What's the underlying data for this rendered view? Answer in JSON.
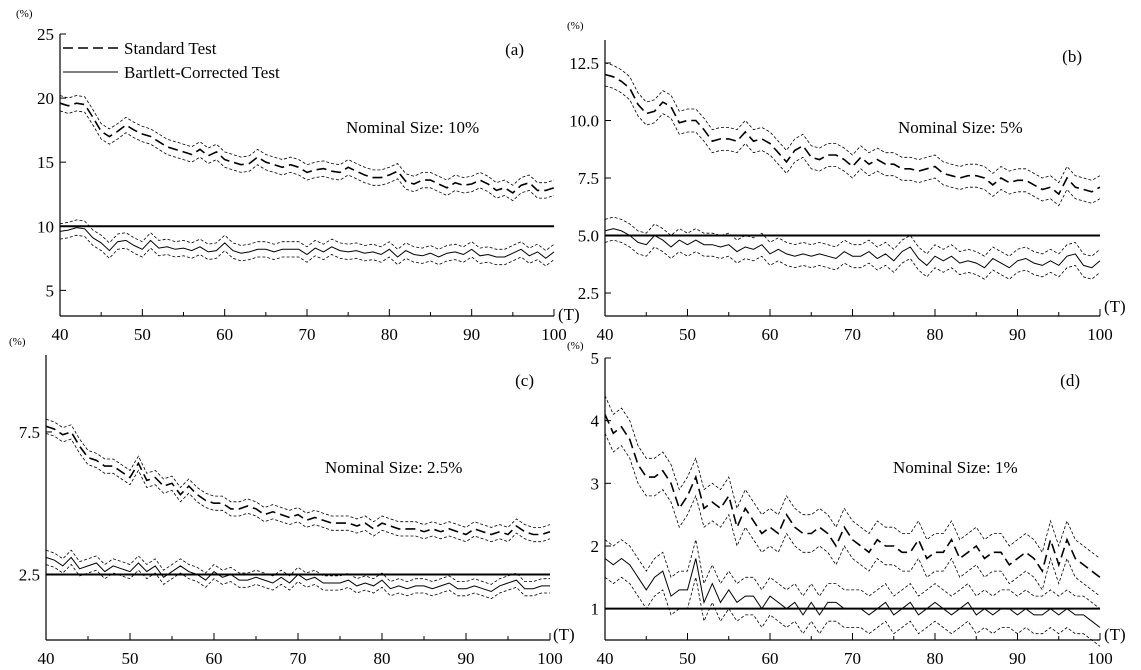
{
  "figure": {
    "legend": {
      "standard": "Standard Test",
      "bartlett": "Bartlett-Corrected Test"
    },
    "y_unit": "(%)",
    "x_unit": "(T)"
  },
  "chart_data": [
    {
      "type": "line",
      "panel_label": "(a)",
      "annotation": "Nominal Size: 10%",
      "xlabel": "(T)",
      "ylabel": "(%)",
      "xlim": [
        40,
        100
      ],
      "ylim": [
        3,
        25
      ],
      "xticks": [
        "40",
        "50",
        "60",
        "70",
        "80",
        "90",
        "100"
      ],
      "yticks": [
        "5",
        "10",
        "15",
        "20",
        "25"
      ],
      "nominal_line": 10,
      "band": 0.6,
      "x_start": 40,
      "x_step": 1,
      "grid": false,
      "legend_position": "top-left",
      "series": [
        {
          "name": "Standard Test",
          "style": "dashed",
          "values": [
            19.6,
            19.4,
            19.6,
            19.5,
            18.5,
            17.4,
            17.0,
            17.4,
            17.9,
            17.5,
            17.2,
            17.0,
            16.6,
            16.2,
            16.0,
            15.8,
            15.6,
            16.0,
            15.5,
            15.8,
            15.2,
            15.0,
            14.8,
            14.9,
            15.4,
            15.0,
            14.8,
            14.6,
            14.8,
            14.6,
            14.2,
            14.4,
            14.5,
            14.3,
            14.2,
            14.6,
            14.3,
            14.0,
            13.8,
            13.8,
            14.0,
            14.3,
            13.5,
            13.3,
            13.6,
            13.6,
            13.3,
            13.0,
            13.4,
            13.2,
            13.3,
            13.6,
            13.3,
            12.8,
            13.0,
            12.6,
            13.2,
            13.4,
            12.8,
            12.8,
            13.0
          ]
        },
        {
          "name": "Bartlett-Corrected Test",
          "style": "solid",
          "values": [
            9.6,
            9.7,
            9.9,
            9.8,
            9.1,
            8.7,
            8.1,
            8.8,
            8.9,
            8.5,
            8.2,
            8.9,
            8.3,
            8.4,
            8.2,
            8.3,
            8.1,
            8.4,
            8.0,
            8.1,
            8.7,
            8.1,
            7.9,
            8.0,
            8.2,
            8.2,
            8.0,
            8.2,
            8.2,
            8.2,
            7.8,
            8.3,
            8.0,
            8.4,
            8.1,
            8.0,
            8.1,
            7.9,
            8.0,
            7.8,
            8.2,
            7.6,
            8.1,
            7.8,
            7.7,
            7.9,
            7.6,
            7.9,
            8.0,
            7.8,
            8.2,
            7.7,
            7.8,
            7.6,
            7.6,
            7.9,
            8.2,
            7.7,
            8.0,
            7.5,
            8.0
          ]
        }
      ]
    },
    {
      "type": "line",
      "panel_label": "(b)",
      "annotation": "Nominal Size: 5%",
      "xlabel": "(T)",
      "ylabel": "(%)",
      "xlim": [
        40,
        100
      ],
      "ylim": [
        1.5,
        13.5
      ],
      "xticks": [
        "40",
        "50",
        "60",
        "70",
        "80",
        "90",
        "100"
      ],
      "yticks": [
        "2.5",
        "5.0",
        "7.5",
        "10.0",
        "12.5"
      ],
      "nominal_line": 5,
      "band": 0.5,
      "x_start": 40,
      "x_step": 1,
      "grid": false,
      "series": [
        {
          "name": "Standard Test",
          "style": "dashed",
          "values": [
            12.0,
            11.9,
            11.7,
            11.4,
            10.7,
            10.3,
            10.4,
            10.8,
            10.6,
            9.9,
            10.0,
            10.0,
            9.6,
            9.1,
            9.2,
            9.2,
            9.1,
            9.5,
            9.1,
            9.2,
            9.0,
            8.6,
            8.2,
            8.7,
            8.9,
            8.4,
            8.3,
            8.5,
            8.5,
            8.3,
            8.0,
            8.4,
            8.1,
            8.3,
            8.1,
            8.1,
            7.9,
            7.9,
            7.8,
            7.9,
            8.0,
            7.7,
            7.6,
            7.5,
            7.6,
            7.6,
            7.5,
            7.2,
            7.5,
            7.3,
            7.4,
            7.4,
            7.2,
            7.0,
            7.1,
            6.8,
            7.5,
            7.1,
            7.0,
            6.9,
            7.1
          ]
        },
        {
          "name": "Bartlett-Corrected Test",
          "style": "solid",
          "values": [
            5.2,
            5.3,
            5.2,
            5.0,
            4.7,
            4.6,
            5.0,
            4.8,
            4.5,
            4.8,
            4.6,
            4.8,
            4.6,
            4.6,
            4.5,
            4.6,
            4.3,
            4.5,
            4.4,
            4.6,
            4.2,
            4.4,
            4.2,
            4.1,
            4.2,
            4.1,
            4.2,
            4.1,
            4.0,
            4.3,
            4.1,
            4.1,
            4.3,
            4.0,
            4.2,
            3.9,
            4.3,
            4.5,
            4.0,
            3.7,
            4.1,
            3.9,
            4.1,
            3.8,
            3.9,
            3.8,
            3.6,
            4.0,
            3.8,
            3.6,
            3.9,
            4.0,
            3.8,
            3.7,
            3.9,
            3.7,
            4.1,
            4.2,
            3.7,
            3.6,
            3.9
          ]
        }
      ]
    },
    {
      "type": "line",
      "panel_label": "(c)",
      "annotation": "Nominal Size: 2.5%",
      "xlabel": "(T)",
      "ylabel": "(%)",
      "xlim": [
        40,
        100
      ],
      "ylim": [
        0.2,
        10.2
      ],
      "xticks": [
        "40",
        "50",
        "60",
        "70",
        "80",
        "90",
        "100"
      ],
      "yticks": [
        "2.5",
        "7.5"
      ],
      "nominal_line": 2.5,
      "band": 0.25,
      "x_start": 40,
      "x_step": 1,
      "grid": false,
      "series": [
        {
          "name": "Standard Test",
          "style": "dashed",
          "values": [
            7.7,
            7.6,
            7.4,
            7.5,
            7.0,
            6.6,
            6.5,
            6.3,
            6.3,
            6.1,
            5.9,
            6.4,
            5.8,
            5.9,
            5.6,
            5.7,
            5.3,
            5.6,
            5.3,
            5.1,
            5.0,
            5.0,
            4.8,
            4.8,
            4.9,
            4.8,
            4.6,
            4.7,
            4.6,
            4.5,
            4.6,
            4.4,
            4.5,
            4.4,
            4.3,
            4.3,
            4.3,
            4.2,
            4.3,
            4.1,
            4.3,
            4.2,
            4.1,
            4.1,
            4.1,
            4.0,
            4.1,
            4.0,
            4.1,
            4.0,
            3.9,
            4.1,
            4.0,
            3.9,
            4.0,
            3.9,
            4.2,
            4.0,
            3.9,
            3.9,
            4.0
          ]
        },
        {
          "name": "Bartlett-Corrected Test",
          "style": "solid",
          "values": [
            3.1,
            3.0,
            2.8,
            3.1,
            2.7,
            2.8,
            2.9,
            2.6,
            2.8,
            2.7,
            2.6,
            2.9,
            2.6,
            2.8,
            2.4,
            2.6,
            2.8,
            2.6,
            2.5,
            2.3,
            2.6,
            2.4,
            2.5,
            2.3,
            2.3,
            2.4,
            2.3,
            2.2,
            2.4,
            2.2,
            2.5,
            2.3,
            2.4,
            2.2,
            2.2,
            2.2,
            2.3,
            2.1,
            2.2,
            2.1,
            2.3,
            2.0,
            2.1,
            2.0,
            2.1,
            2.1,
            2.0,
            2.1,
            2.2,
            2.0,
            2.0,
            2.1,
            2.0,
            1.9,
            2.1,
            2.2,
            2.3,
            2.0,
            2.0,
            2.1,
            2.1
          ]
        }
      ]
    },
    {
      "type": "line",
      "panel_label": "(d)",
      "annotation": "Nominal Size: 1%",
      "xlabel": "(T)",
      "ylabel": "(%)",
      "xlim": [
        40,
        100
      ],
      "ylim": [
        0.5,
        5
      ],
      "xticks": [
        "40",
        "50",
        "60",
        "70",
        "80",
        "90",
        "100"
      ],
      "yticks": [
        "1",
        "2",
        "3",
        "4",
        "5"
      ],
      "nominal_line": 1,
      "band": 0.3,
      "x_start": 40,
      "x_step": 1,
      "grid": false,
      "series": [
        {
          "name": "Standard Test",
          "style": "dashed",
          "values": [
            4.1,
            3.8,
            3.9,
            3.7,
            3.3,
            3.1,
            3.1,
            3.2,
            3.0,
            2.6,
            2.8,
            3.1,
            2.6,
            2.7,
            2.6,
            2.8,
            2.3,
            2.6,
            2.4,
            2.2,
            2.3,
            2.2,
            2.5,
            2.3,
            2.2,
            2.2,
            2.3,
            2.2,
            2.0,
            2.3,
            2.1,
            2.0,
            1.9,
            2.1,
            2.0,
            2.0,
            1.9,
            1.9,
            2.1,
            1.8,
            1.9,
            1.9,
            2.1,
            1.8,
            1.9,
            2.0,
            1.8,
            1.9,
            1.9,
            1.7,
            1.8,
            1.9,
            1.8,
            1.6,
            2.1,
            1.7,
            2.1,
            1.8,
            1.7,
            1.6,
            1.5
          ]
        },
        {
          "name": "Bartlett-Corrected Test",
          "style": "solid",
          "values": [
            1.8,
            1.7,
            1.8,
            1.7,
            1.5,
            1.3,
            1.5,
            1.6,
            1.2,
            1.3,
            1.3,
            1.8,
            1.1,
            1.4,
            1.1,
            1.3,
            1.1,
            1.2,
            1.2,
            1.0,
            1.2,
            1.1,
            1.0,
            1.1,
            0.9,
            1.1,
            0.9,
            1.1,
            1.1,
            1.0,
            1.0,
            1.0,
            0.9,
            1.0,
            1.1,
            0.9,
            1.0,
            1.1,
            0.9,
            1.0,
            1.1,
            1.0,
            0.9,
            1.0,
            1.1,
            0.9,
            1.0,
            0.9,
            1.0,
            1.0,
            0.9,
            1.0,
            0.9,
            0.9,
            1.0,
            0.9,
            1.0,
            0.9,
            0.9,
            0.8,
            0.7
          ]
        }
      ]
    }
  ]
}
